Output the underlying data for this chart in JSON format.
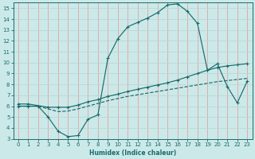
{
  "xlabel": "Humidex (Indice chaleur)",
  "bg_color": "#cce9e9",
  "grid_color_v": "#e8a0a0",
  "grid_color_h": "#b8d8d8",
  "line_color": "#1a6b6b",
  "xlim": [
    -0.5,
    23.5
  ],
  "ylim": [
    3,
    15.5
  ],
  "xticks": [
    0,
    1,
    2,
    3,
    4,
    5,
    6,
    7,
    8,
    9,
    10,
    11,
    12,
    13,
    14,
    15,
    16,
    17,
    18,
    19,
    20,
    21,
    22,
    23
  ],
  "yticks": [
    3,
    4,
    5,
    6,
    7,
    8,
    9,
    10,
    11,
    12,
    13,
    14,
    15
  ],
  "curve1_x": [
    0,
    1,
    2,
    3,
    4,
    5,
    6,
    7,
    8,
    9,
    10,
    11,
    12,
    13,
    14,
    15,
    16,
    17,
    18,
    19,
    20,
    21,
    22,
    23
  ],
  "curve1_y": [
    6.0,
    6.0,
    6.0,
    5.0,
    3.7,
    3.2,
    3.3,
    4.8,
    5.2,
    10.4,
    12.2,
    13.3,
    13.7,
    14.1,
    14.6,
    15.3,
    15.4,
    14.7,
    13.6,
    9.3,
    9.9,
    7.8,
    6.3,
    8.3
  ],
  "curve2_x": [
    0,
    1,
    3,
    4,
    5,
    6,
    7,
    8,
    9,
    10,
    11,
    12,
    13,
    14,
    15,
    16,
    17,
    18,
    19,
    20,
    21,
    22,
    23
  ],
  "curve2_y": [
    6.2,
    6.2,
    5.9,
    5.9,
    5.9,
    6.1,
    6.4,
    6.6,
    6.9,
    7.1,
    7.35,
    7.55,
    7.75,
    7.95,
    8.15,
    8.4,
    8.7,
    9.0,
    9.3,
    9.55,
    9.7,
    9.8,
    9.9
  ],
  "curve3_x": [
    0,
    1,
    2,
    3,
    4,
    5,
    6,
    7,
    8,
    9,
    10,
    11,
    12,
    13,
    14,
    15,
    16,
    17,
    18,
    19,
    20,
    21,
    22,
    23
  ],
  "curve3_y": [
    6.0,
    6.0,
    6.0,
    5.75,
    5.5,
    5.55,
    5.75,
    6.0,
    6.25,
    6.5,
    6.7,
    6.9,
    7.05,
    7.2,
    7.35,
    7.5,
    7.65,
    7.8,
    7.95,
    8.1,
    8.25,
    8.35,
    8.45,
    8.55
  ]
}
